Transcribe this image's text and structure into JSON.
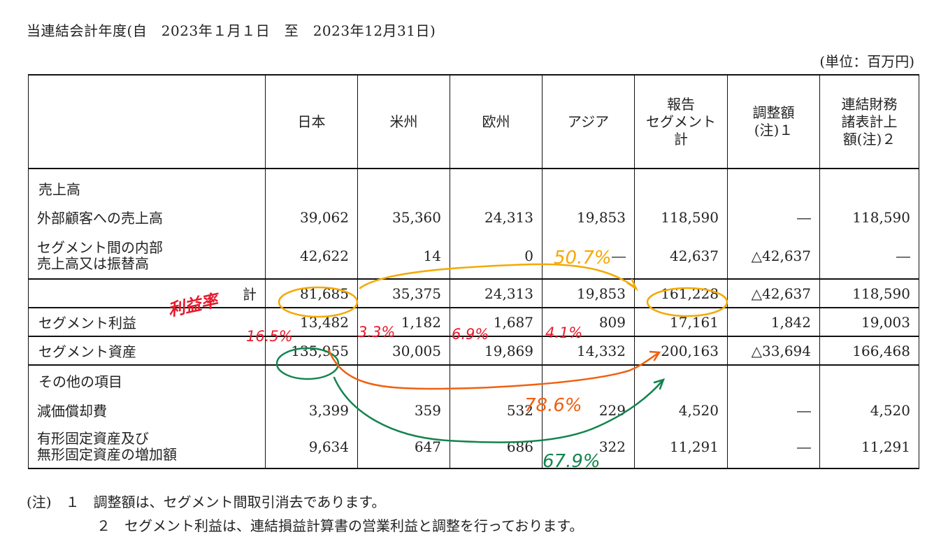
{
  "title": "当連結会計年度(自　2023年１月１日　至　2023年12月31日)",
  "unit": "(単位：百万円)",
  "headers": {
    "japan": "日本",
    "americas": "米州",
    "europe": "欧州",
    "asia": "アジア",
    "reported_total": "報告\nセグメント\n計",
    "adjustment": "調整額\n(注)１",
    "consolidated": "連結財務\n諸表計上\n額(注)２"
  },
  "rows": {
    "sales": {
      "label": "売上高"
    },
    "external_sales": {
      "label": "外部顧客への売上高",
      "values": [
        "39,062",
        "35,360",
        "24,313",
        "19,853",
        "118,590",
        "―",
        "118,590"
      ]
    },
    "intersegment": {
      "label": "セグメント間の内部\n売上高又は振替高",
      "values": [
        "42,622",
        "14",
        "0",
        "―",
        "42,637",
        "△42,637",
        "―"
      ]
    },
    "total": {
      "label": "計",
      "values": [
        "81,685",
        "35,375",
        "24,313",
        "19,853",
        "161,228",
        "△42,637",
        "118,590"
      ]
    },
    "segment_profit": {
      "label": "セグメント利益",
      "values": [
        "13,482",
        "1,182",
        "1,687",
        "809",
        "17,161",
        "1,842",
        "19,003"
      ]
    },
    "segment_assets": {
      "label": "セグメント資産",
      "values": [
        "135,955",
        "30,005",
        "19,869",
        "14,332",
        "200,163",
        "△33,694",
        "166,468"
      ]
    },
    "other": {
      "label": "その他の項目"
    },
    "depreciation": {
      "label": "減価償却費",
      "values": [
        "3,399",
        "359",
        "532",
        "229",
        "4,520",
        "―",
        "4,520"
      ]
    },
    "capex": {
      "label": "有形固定資産及び\n無形固定資産の増加額",
      "values": [
        "9,634",
        "647",
        "686",
        "322",
        "11,291",
        "―",
        "11,291"
      ]
    }
  },
  "notes": [
    "(注)　１　調整額は、セグメント間取引消去であります。",
    "２　セグメント利益は、連結損益計算書の営業利益と調整を行っております。"
  ],
  "annotations": {
    "label_profit_rate": "利益率",
    "sales_share": "50.7%",
    "margin_japan": "16.5%",
    "margin_americas": "3.3%",
    "margin_europe": "6.9%",
    "margin_asia": "4.1%",
    "assets_share_orange": "78.6%",
    "assets_share_green": "67.9%",
    "colors": {
      "red": "#e8192c",
      "orange_yellow": "#f5a800",
      "orange": "#f06010",
      "green": "#12844e"
    }
  }
}
